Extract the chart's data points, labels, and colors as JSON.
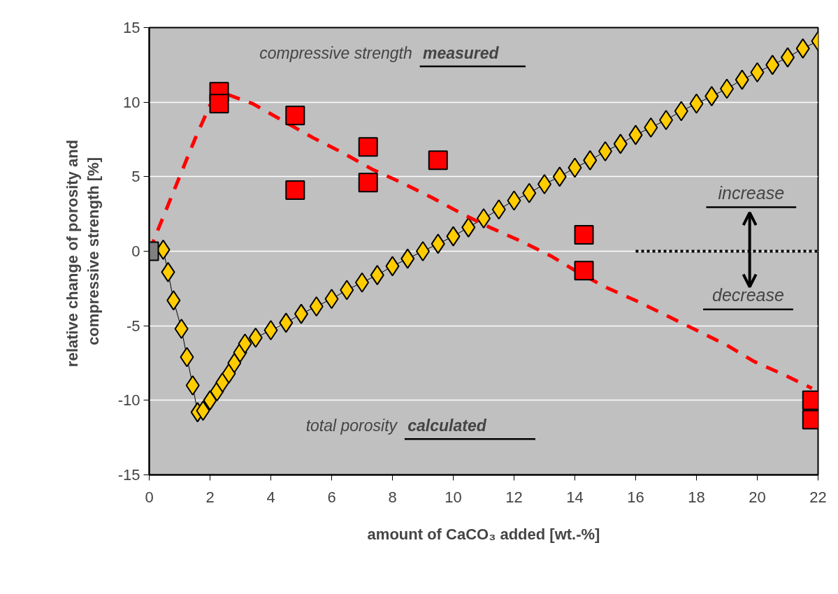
{
  "chart_data": {
    "type": "line",
    "xlabel": "amount of CaCO₃ added [wt.-%]",
    "ylabel": "relative change of  porosity and\ncompressive strength [%]",
    "xlim": [
      0,
      22
    ],
    "ylim": [
      -15,
      15
    ],
    "xticks": [
      0,
      2,
      4,
      6,
      8,
      10,
      12,
      14,
      16,
      18,
      20,
      22
    ],
    "yticks": [
      -15,
      -10,
      -5,
      0,
      5,
      10,
      15
    ],
    "grid": "y",
    "annotations": [
      "compressive strength measured",
      "total porosity calculated",
      "increase",
      "decrease"
    ],
    "series": [
      {
        "marker": "diamond",
        "color": "#ffcc00",
        "x": [
          0.46,
          0.62,
          0.8,
          1.06,
          1.24,
          1.43,
          1.59,
          1.77,
          2.0,
          2.23,
          2.41,
          2.62,
          2.8,
          2.99,
          3.15,
          3.5,
          4,
          4.5,
          5,
          5.5,
          6,
          6.5,
          7,
          7.5,
          8,
          8.5,
          9,
          9.5,
          10,
          10.5,
          11,
          11.5,
          12,
          12.5,
          13,
          13.5,
          14,
          14.5,
          15,
          15.5,
          16,
          16.5,
          17,
          17.5,
          18,
          18.5,
          19,
          19.5,
          20,
          20.5,
          21,
          21.5,
          22
        ],
        "values": [
          0.1,
          -1.4,
          -3.3,
          -5.2,
          -7.1,
          -9.0,
          -10.8,
          -10.7,
          -10.0,
          -9.4,
          -8.8,
          -8.2,
          -7.5,
          -6.8,
          -6.2,
          -5.8,
          -5.3,
          -4.8,
          -4.2,
          -3.7,
          -3.2,
          -2.6,
          -2.1,
          -1.6,
          -1.0,
          -0.5,
          0.0,
          0.5,
          1.0,
          1.6,
          2.2,
          2.8,
          3.4,
          3.9,
          4.5,
          5.0,
          5.6,
          6.1,
          6.7,
          7.2,
          7.8,
          8.3,
          8.8,
          9.4,
          9.9,
          10.4,
          10.9,
          11.5,
          12.0,
          12.5,
          13.0,
          13.6,
          14.1
        ]
      },
      {
        "marker": "none",
        "line_style": "dashed",
        "color": "#ff0000",
        "x": [
          0,
          0.5,
          1,
          1.5,
          2,
          2.6,
          3.4,
          4.53,
          5.4,
          6.37,
          7.33,
          8.3,
          9.3,
          10.3,
          11.2,
          12.2,
          13.2,
          14.1,
          15.0,
          16.1,
          17.1,
          18.0,
          19.0,
          19.9,
          20.9,
          21.8
        ],
        "values": [
          0,
          2.5,
          5,
          7.5,
          9.8,
          10.5,
          9.9,
          8.6,
          7.6,
          6.6,
          5.5,
          4.6,
          3.6,
          2.5,
          1.6,
          0.7,
          -0.3,
          -1.4,
          -2.4,
          -3.4,
          -4.4,
          -5.3,
          -6.3,
          -7.4,
          -8.3,
          -9.2
        ]
      },
      {
        "type": "scatter",
        "marker": "square",
        "color": "#ff0000",
        "x": [
          2.3,
          2.3,
          4.8,
          4.8,
          7.2,
          7.2,
          9.5,
          14.3,
          14.3,
          21.8,
          21.8
        ],
        "values": [
          10.7,
          9.9,
          9.1,
          4.1,
          7.0,
          4.6,
          6.1,
          1.1,
          -1.3,
          -10.0,
          -11.3
        ]
      },
      {
        "type": "scatter",
        "marker": "square",
        "color": "#808080",
        "x": [
          0
        ],
        "values": [
          0
        ]
      },
      {
        "marker": "none",
        "line_style": "dotted",
        "color": "#000000",
        "x": [
          16,
          22
        ],
        "values": [
          0,
          0
        ]
      }
    ]
  }
}
